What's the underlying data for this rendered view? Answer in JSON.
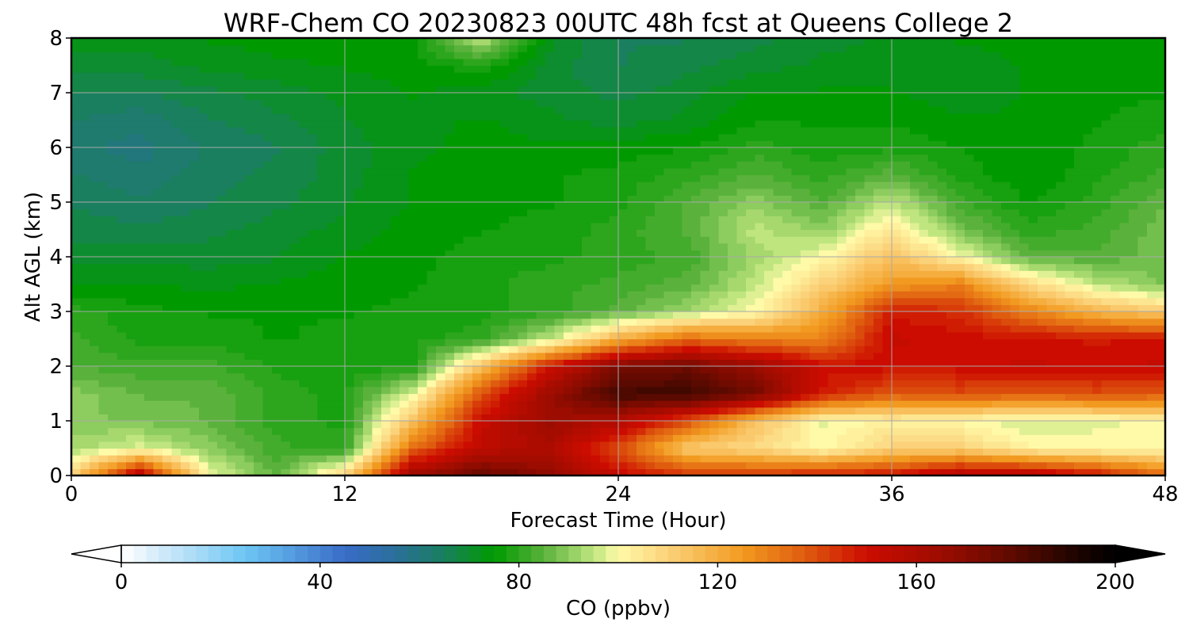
{
  "chart_data": {
    "type": "heatmap",
    "title": "WRF-Chem CO  20230823 00UTC 48h fcst at Queens College 2",
    "xlabel": "Forecast Time (Hour)",
    "ylabel": "Alt AGL (km)",
    "xlim": [
      0,
      48
    ],
    "ylim": [
      0,
      8
    ],
    "xticks": [
      "0",
      "12",
      "24",
      "36",
      "48"
    ],
    "yticks": [
      "0",
      "1",
      "2",
      "3",
      "4",
      "5",
      "6",
      "7",
      "8"
    ],
    "grid": true,
    "x_hours": [
      0,
      3,
      6,
      9,
      12,
      15,
      18,
      21,
      24,
      27,
      30,
      33,
      36,
      39,
      42,
      45,
      48
    ],
    "y_km": [
      0,
      0.5,
      1,
      1.5,
      2,
      2.5,
      3,
      3.5,
      4,
      4.5,
      5,
      5.5,
      6,
      6.5,
      7,
      7.5,
      8
    ],
    "values_ppbv": [
      [
        110,
        160,
        100,
        85,
        110,
        165,
        178,
        168,
        152,
        145,
        145,
        148,
        150,
        160,
        160,
        150,
        135
      ],
      [
        92,
        98,
        90,
        82,
        80,
        135,
        155,
        160,
        140,
        112,
        108,
        100,
        110,
        110,
        102,
        100,
        100
      ],
      [
        90,
        88,
        86,
        80,
        78,
        115,
        152,
        165,
        158,
        140,
        115,
        98,
        102,
        100,
        96,
        98,
        100
      ],
      [
        90,
        86,
        86,
        80,
        78,
        98,
        140,
        165,
        185,
        186,
        175,
        148,
        138,
        140,
        138,
        140,
        138
      ],
      [
        84,
        82,
        82,
        78,
        77,
        78,
        115,
        150,
        172,
        175,
        165,
        150,
        150,
        150,
        152,
        150,
        152
      ],
      [
        82,
        78,
        78,
        76,
        77,
        78,
        80,
        95,
        120,
        135,
        130,
        130,
        152,
        150,
        150,
        148,
        150
      ],
      [
        80,
        77,
        76,
        76,
        76,
        77,
        78,
        80,
        85,
        92,
        100,
        120,
        148,
        145,
        130,
        118,
        112
      ],
      [
        74,
        74,
        73,
        74,
        75,
        76,
        78,
        80,
        82,
        85,
        95,
        110,
        125,
        130,
        108,
        95,
        88
      ],
      [
        70,
        70,
        70,
        71,
        74,
        75,
        78,
        78,
        80,
        82,
        92,
        100,
        115,
        100,
        85,
        84,
        88
      ],
      [
        68,
        67,
        68,
        70,
        72,
        75,
        76,
        77,
        80,
        84,
        95,
        90,
        105,
        88,
        80,
        82,
        88
      ],
      [
        66,
        64,
        66,
        68,
        71,
        74,
        76,
        76,
        78,
        84,
        90,
        84,
        95,
        82,
        76,
        80,
        86
      ],
      [
        64,
        62,
        65,
        67,
        70,
        74,
        75,
        76,
        77,
        80,
        84,
        80,
        85,
        78,
        74,
        78,
        82
      ],
      [
        62,
        60,
        64,
        66,
        70,
        73,
        75,
        74,
        75,
        76,
        80,
        77,
        78,
        76,
        74,
        77,
        80
      ],
      [
        64,
        62,
        66,
        68,
        71,
        73,
        74,
        72,
        70,
        72,
        76,
        76,
        76,
        74,
        74,
        76,
        78
      ],
      [
        66,
        66,
        68,
        70,
        72,
        74,
        72,
        70,
        68,
        70,
        74,
        74,
        74,
        72,
        74,
        75,
        76
      ],
      [
        70,
        70,
        72,
        73,
        74,
        75,
        78,
        70,
        66,
        68,
        70,
        72,
        72,
        72,
        74,
        74,
        74
      ],
      [
        72,
        72,
        74,
        75,
        76,
        76,
        95,
        72,
        66,
        66,
        68,
        70,
        72,
        74,
        75,
        75,
        74
      ]
    ],
    "colorbar": {
      "label": "CO  (ppbv)",
      "ticks": [
        "0",
        "40",
        "80",
        "120",
        "160",
        "200"
      ],
      "range": [
        0,
        200
      ],
      "extend": "both",
      "stops": [
        {
          "v": 0,
          "c": "#ffffff"
        },
        {
          "v": 10,
          "c": "#c6e6f8"
        },
        {
          "v": 25,
          "c": "#6cc6f4"
        },
        {
          "v": 45,
          "c": "#3a6cc8"
        },
        {
          "v": 55,
          "c": "#2a6f9a"
        },
        {
          "v": 65,
          "c": "#1a7f5e"
        },
        {
          "v": 75,
          "c": "#009a00"
        },
        {
          "v": 85,
          "c": "#5ab23c"
        },
        {
          "v": 95,
          "c": "#bfe57f"
        },
        {
          "v": 100,
          "c": "#fffaa8"
        },
        {
          "v": 110,
          "c": "#fbd27a"
        },
        {
          "v": 125,
          "c": "#f29a20"
        },
        {
          "v": 137,
          "c": "#e05f10"
        },
        {
          "v": 150,
          "c": "#cc0c00"
        },
        {
          "v": 165,
          "c": "#9c0c00"
        },
        {
          "v": 180,
          "c": "#5a0a00"
        },
        {
          "v": 192,
          "c": "#1e0400"
        },
        {
          "v": 200,
          "c": "#000000"
        }
      ]
    }
  }
}
